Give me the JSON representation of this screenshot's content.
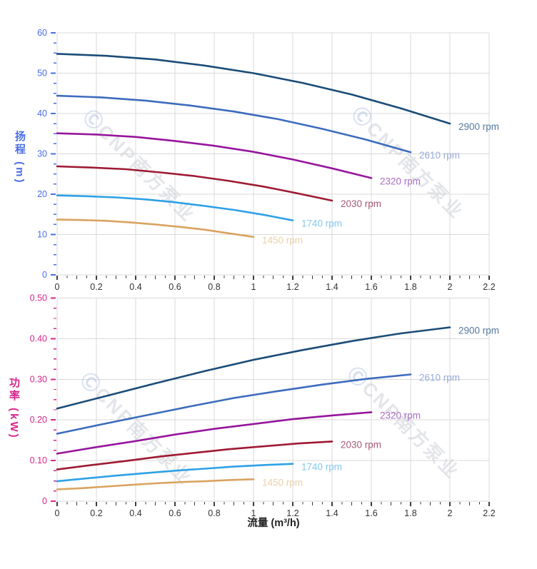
{
  "watermark": {
    "logo_glyph": "Ⓒ",
    "text": "CNP南方泵业",
    "text_color": "#cdd0d8",
    "logo_color": "#b4c5e2"
  },
  "grid_color": "#d9d9d9",
  "axes": {
    "flow": {
      "title": "流量 (m³/h)",
      "min": 0,
      "max": 2.2,
      "ticks": [
        0,
        0.2,
        0.4,
        0.6,
        0.8,
        1,
        1.2,
        1.4,
        1.6,
        1.8,
        2,
        2.2
      ],
      "tick_labels": [
        "0",
        "0.2",
        "0.4",
        "0.6",
        "0.8",
        "1",
        "1.2",
        "1.4",
        "1.6",
        "1.8",
        "2",
        "2.2"
      ],
      "minor_step": 0.05,
      "tick_color": "#3d3d3d",
      "label_color": "#333333"
    },
    "head": {
      "title": "扬程 (m)",
      "min": 0,
      "max": 60,
      "ticks": [
        0,
        10,
        20,
        30,
        40,
        50,
        60
      ],
      "tick_labels": [
        "0",
        "10",
        "20",
        "30",
        "40",
        "50",
        "60"
      ],
      "minor_step": 2.5,
      "color": "#4b6de4"
    },
    "power": {
      "title": "功率 (kW)",
      "min": 0,
      "max": 0.5,
      "ticks": [
        0,
        0.1,
        0.2,
        0.3,
        0.4,
        0.5
      ],
      "tick_labels": [
        "0",
        "0.10",
        "0.20",
        "0.30",
        "0.40",
        "0.50"
      ],
      "minor_step": 0.025,
      "color": "#d6278c"
    }
  },
  "chart_data": [
    {
      "type": "line",
      "id": "head-curves",
      "title": "",
      "xlabel": "流量 (m³/h)",
      "ylabel": "扬程 (m)",
      "xlim": [
        0,
        2.2
      ],
      "ylim": [
        0,
        60
      ],
      "grid": true,
      "legend_position": "end-of-line labels",
      "series": [
        {
          "name": "2900 rpm",
          "color": "#1b4c77",
          "label_color": "#567a9f",
          "x": [
            0,
            0.25,
            0.5,
            0.75,
            1,
            1.25,
            1.5,
            1.75,
            2
          ],
          "y": [
            54.8,
            54.3,
            53.4,
            51.9,
            50,
            47.6,
            44.7,
            41.3,
            37.5
          ]
        },
        {
          "name": "2610 rpm",
          "color": "#3d6cbd",
          "label_color": "#98abd9",
          "x": [
            0,
            0.225,
            0.45,
            0.675,
            0.9,
            1.125,
            1.35,
            1.575,
            1.8
          ],
          "y": [
            44.4,
            44,
            43.2,
            42,
            40.5,
            38.6,
            36.2,
            33.5,
            30.4
          ]
        },
        {
          "name": "2320 rpm",
          "color": "#96169c",
          "label_color": "#ab6cc6",
          "x": [
            0,
            0.2,
            0.4,
            0.6,
            0.8,
            1,
            1.2,
            1.4,
            1.6
          ],
          "y": [
            35.1,
            34.8,
            34.2,
            33.2,
            32,
            30.5,
            28.6,
            26.4,
            24
          ]
        },
        {
          "name": "2030 rpm",
          "color": "#9e1a33",
          "label_color": "#a65a72",
          "x": [
            0,
            0.175,
            0.35,
            0.525,
            0.7,
            0.875,
            1.05,
            1.225,
            1.4
          ],
          "y": [
            26.9,
            26.6,
            26.2,
            25.4,
            24.5,
            23.3,
            21.9,
            20.2,
            18.4
          ]
        },
        {
          "name": "1740 rpm",
          "color": "#2ea1e6",
          "label_color": "#84c8ef",
          "x": [
            0,
            0.15,
            0.3,
            0.45,
            0.6,
            0.75,
            0.9,
            1.05,
            1.2
          ],
          "y": [
            19.7,
            19.5,
            19.2,
            18.7,
            18,
            17.1,
            16.1,
            14.9,
            13.5
          ]
        },
        {
          "name": "1450 rpm",
          "color": "#d9a360",
          "label_color": "#ead1a8",
          "x": [
            0,
            0.125,
            0.25,
            0.375,
            0.5,
            0.625,
            0.75,
            0.875,
            1
          ],
          "y": [
            13.7,
            13.6,
            13.4,
            13,
            12.5,
            11.9,
            11.2,
            10.3,
            9.4
          ]
        }
      ]
    },
    {
      "type": "line",
      "id": "power-curves",
      "title": "",
      "xlabel": "流量 (m³/h)",
      "ylabel": "功率 (kW)",
      "xlim": [
        0,
        2.2
      ],
      "ylim": [
        0,
        0.5
      ],
      "grid": true,
      "legend_position": "end-of-line labels",
      "series": [
        {
          "name": "2900 rpm",
          "color": "#1b4c77",
          "label_color": "#567a9f",
          "x": [
            0,
            0.25,
            0.5,
            0.75,
            1,
            1.25,
            1.5,
            1.75,
            2
          ],
          "y": [
            0.228,
            0.259,
            0.29,
            0.32,
            0.348,
            0.372,
            0.394,
            0.413,
            0.428
          ]
        },
        {
          "name": "2610 rpm",
          "color": "#3d6cbd",
          "label_color": "#98abd9",
          "x": [
            0,
            0.225,
            0.45,
            0.675,
            0.9,
            1.125,
            1.35,
            1.575,
            1.8
          ],
          "y": [
            0.166,
            0.189,
            0.211,
            0.233,
            0.254,
            0.271,
            0.287,
            0.301,
            0.312
          ]
        },
        {
          "name": "2320 rpm",
          "color": "#96169c",
          "label_color": "#ab6cc6",
          "x": [
            0,
            0.2,
            0.4,
            0.6,
            0.8,
            1,
            1.2,
            1.4,
            1.6
          ],
          "y": [
            0.117,
            0.133,
            0.148,
            0.164,
            0.178,
            0.19,
            0.202,
            0.211,
            0.219
          ]
        },
        {
          "name": "2030 rpm",
          "color": "#9e1a33",
          "label_color": "#a65a72",
          "x": [
            0,
            0.175,
            0.35,
            0.525,
            0.7,
            0.875,
            1.05,
            1.225,
            1.4
          ],
          "y": [
            0.078,
            0.089,
            0.099,
            0.11,
            0.119,
            0.128,
            0.135,
            0.142,
            0.147
          ]
        },
        {
          "name": "1740 rpm",
          "color": "#2ea1e6",
          "label_color": "#84c8ef",
          "x": [
            0,
            0.15,
            0.3,
            0.45,
            0.6,
            0.75,
            0.9,
            1.05,
            1.2
          ],
          "y": [
            0.049,
            0.056,
            0.063,
            0.069,
            0.075,
            0.08,
            0.085,
            0.089,
            0.092
          ]
        },
        {
          "name": "1450 rpm",
          "color": "#d9a360",
          "label_color": "#ead1a8",
          "x": [
            0,
            0.125,
            0.25,
            0.375,
            0.5,
            0.625,
            0.75,
            0.875,
            1
          ],
          "y": [
            0.029,
            0.032,
            0.036,
            0.04,
            0.044,
            0.047,
            0.049,
            0.052,
            0.054
          ]
        }
      ]
    }
  ]
}
